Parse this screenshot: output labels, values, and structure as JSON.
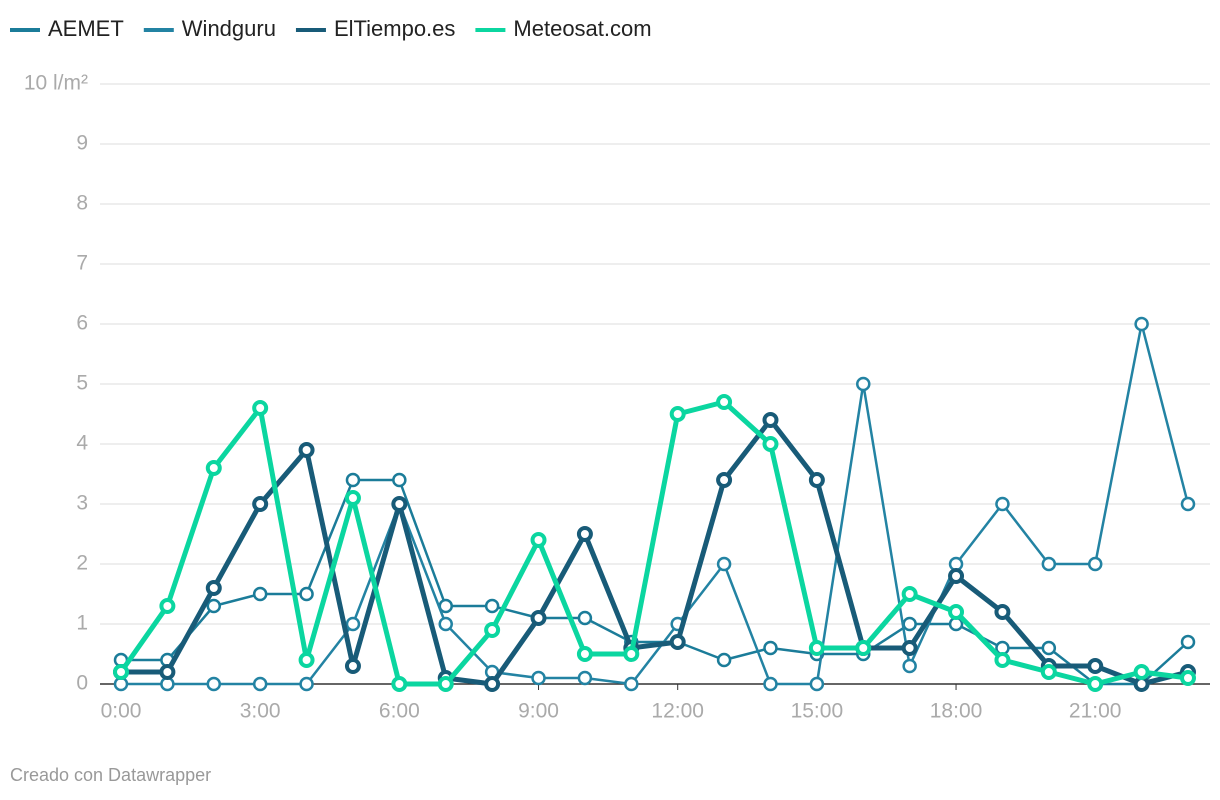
{
  "chart_data": {
    "type": "line",
    "x": [
      0,
      1,
      2,
      3,
      4,
      5,
      6,
      7,
      8,
      9,
      10,
      11,
      12,
      13,
      14,
      15,
      16,
      17,
      18,
      19,
      20,
      21,
      22,
      23
    ],
    "xlim": [
      0,
      23
    ],
    "xticks": [
      {
        "value": 0,
        "label": "0:00"
      },
      {
        "value": 3,
        "label": "3:00"
      },
      {
        "value": 6,
        "label": "6:00"
      },
      {
        "value": 9,
        "label": "9:00"
      },
      {
        "value": 12,
        "label": "12:00"
      },
      {
        "value": 15,
        "label": "15:00"
      },
      {
        "value": 18,
        "label": "18:00"
      },
      {
        "value": 21,
        "label": "21:00"
      }
    ],
    "ylim": [
      0,
      10
    ],
    "yticks": [
      0,
      1,
      2,
      3,
      4,
      5,
      6,
      7,
      8,
      9,
      {
        "value": 10,
        "label": "10 l/m²"
      }
    ],
    "grid": true,
    "legend": "top-left",
    "series": [
      {
        "name": "AEMET",
        "color": "#1b7c99",
        "width": 2.5,
        "values": [
          0.4,
          0.4,
          1.3,
          1.5,
          1.5,
          3.4,
          3.4,
          1.3,
          1.3,
          1.1,
          1.1,
          0.7,
          0.7,
          0.4,
          0.6,
          0.5,
          0.5,
          1.0,
          1.0,
          0.6,
          0.6,
          0,
          0,
          0.7
        ]
      },
      {
        "name": "Windguru",
        "color": "#2383a3",
        "width": 2.5,
        "values": [
          0,
          0,
          0,
          0,
          0,
          1.0,
          3.0,
          1.0,
          0.2,
          0.1,
          0.1,
          0,
          1.0,
          2.0,
          0,
          0,
          5.0,
          0.3,
          2.0,
          3.0,
          2.0,
          2.0,
          6.0,
          3.0
        ]
      },
      {
        "name": "ElTiempo.es",
        "color": "#185b78",
        "width": 5,
        "values": [
          0.2,
          0.2,
          1.6,
          3.0,
          3.9,
          0.3,
          3.0,
          0.1,
          0,
          1.1,
          2.5,
          0.6,
          0.7,
          3.4,
          4.4,
          3.4,
          0.6,
          0.6,
          1.8,
          1.2,
          0.3,
          0.3,
          0,
          0.2
        ]
      },
      {
        "name": "Meteosat.com",
        "color": "#0bd6a0",
        "width": 5,
        "values": [
          0.2,
          1.3,
          3.6,
          4.6,
          0.4,
          3.1,
          0,
          0,
          0.9,
          2.4,
          0.5,
          0.5,
          4.5,
          4.7,
          4.0,
          0.6,
          0.6,
          1.5,
          1.2,
          0.4,
          0.2,
          0,
          0.2,
          0.1
        ]
      }
    ]
  },
  "footer": "Creado con Datawrapper"
}
